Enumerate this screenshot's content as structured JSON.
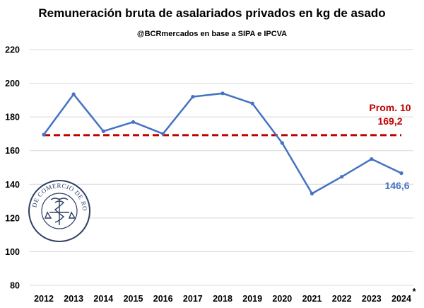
{
  "chart_data": {
    "type": "line",
    "title": "Remuneración bruta de asalariados privados en kg de asado",
    "subtitle": "@BCRmercados en base a SIPA e IPCVA",
    "x": [
      "2012",
      "2013",
      "2014",
      "2015",
      "2016",
      "2017",
      "2018",
      "2019",
      "2020",
      "2021",
      "2022",
      "2023",
      "2024"
    ],
    "x_last_marker": "*",
    "series": [
      {
        "values": [
          169.5,
          193.5,
          171.5,
          177.0,
          170.0,
          192.0,
          194.0,
          188.0,
          164.5,
          134.5,
          144.5,
          155.0,
          146.6
        ],
        "color": "#4472c4",
        "last_label": "146,6"
      }
    ],
    "average": {
      "value": 169.2,
      "label_line1": "Prom. 10",
      "label_line2": "169,2",
      "color": "#c00000"
    },
    "y_ticks": [
      80,
      100,
      120,
      140,
      160,
      180,
      200,
      220
    ],
    "ylim": [
      80,
      220
    ],
    "grid": true,
    "legend": "none",
    "seal_text": "BOLSA DE COMERCIO DE ROSARIO"
  }
}
